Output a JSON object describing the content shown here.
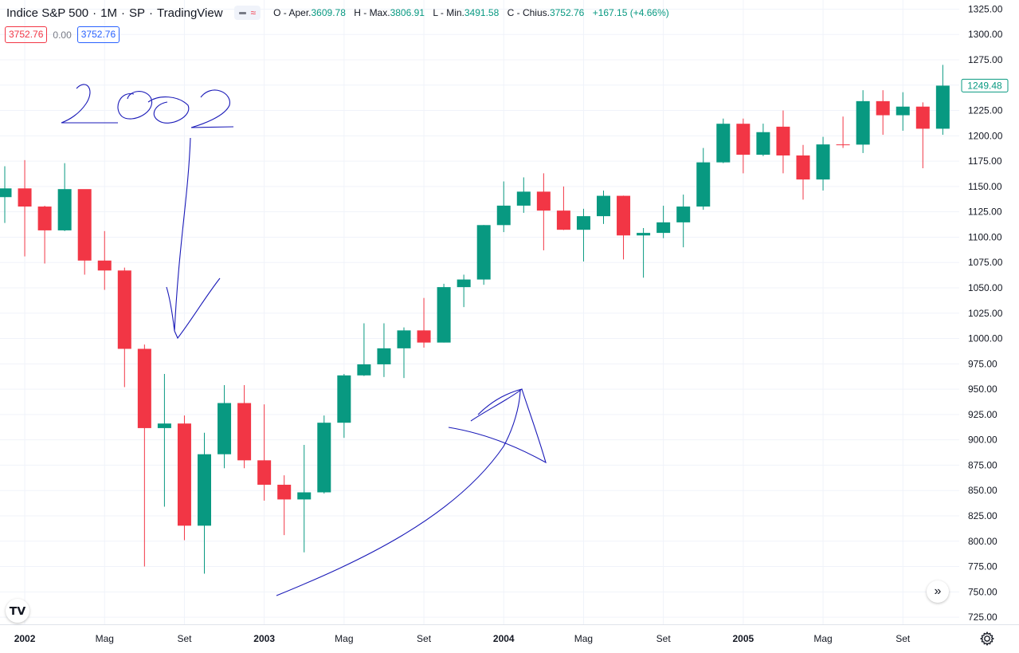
{
  "header": {
    "symbol": "Indice S&P 500",
    "interval": "1M",
    "exchange": "SP",
    "source": "TradingView",
    "separator": "·",
    "ohlc": {
      "open_label": "O - Aper.",
      "open": "3609.78",
      "high_label": "H - Max.",
      "high": "3806.91",
      "low_label": "L - Min.",
      "low": "3491.58",
      "close_label": "C - Chius.",
      "close": "3752.76",
      "change": "+167.15 (+4.66%)"
    }
  },
  "trade": {
    "sell": "3752.76",
    "spread": "0.00",
    "buy": "3752.76"
  },
  "colors": {
    "up": "#089981",
    "down": "#f23645",
    "drawing": "#1a1ab8",
    "grid": "#f0f3fa"
  },
  "icons": {
    "logo": "tradingview-logo-icon",
    "scroll": "double-chevron-right-icon",
    "settings": "gear-icon"
  },
  "logo_text": "𝗧𝗩",
  "scroll_glyph": "»",
  "chart_data": {
    "type": "candlestick",
    "title": "",
    "x_axis": {
      "ticks": [
        "2002",
        "Mag",
        "Set",
        "2003",
        "Mag",
        "Set",
        "2004",
        "Mag",
        "Set",
        "2005",
        "Mag",
        "Set"
      ]
    },
    "y_axis": {
      "range": [
        718,
        1334
      ],
      "ticks": [
        725,
        750,
        775,
        800,
        825,
        850,
        875,
        900,
        925,
        950,
        975,
        1000,
        1025,
        1050,
        1075,
        1100,
        1125,
        1150,
        1175,
        1200,
        1225,
        1250,
        1275,
        1300,
        1325
      ],
      "tick_format": "2dp",
      "position": "right"
    },
    "last_price_label": "1249.48",
    "candles": [
      {
        "date": "2001-12",
        "o": 1139.5,
        "h": 1170,
        "l": 1114,
        "c": 1148.1
      },
      {
        "date": "2002-01",
        "o": 1148.1,
        "h": 1176,
        "l": 1081,
        "c": 1130.2
      },
      {
        "date": "2002-02",
        "o": 1130.2,
        "h": 1131,
        "l": 1074,
        "c": 1106.7
      },
      {
        "date": "2002-03",
        "o": 1106.7,
        "h": 1173,
        "l": 1106,
        "c": 1147.4
      },
      {
        "date": "2002-04",
        "o": 1147.4,
        "h": 1147,
        "l": 1063,
        "c": 1076.9
      },
      {
        "date": "2002-05",
        "o": 1076.9,
        "h": 1106,
        "l": 1048,
        "c": 1067.1
      },
      {
        "date": "2002-06",
        "o": 1067.1,
        "h": 1070,
        "l": 952,
        "c": 989.8
      },
      {
        "date": "2002-07",
        "o": 989.8,
        "h": 994,
        "l": 775,
        "c": 911.6
      },
      {
        "date": "2002-08",
        "o": 911.6,
        "h": 965,
        "l": 834,
        "c": 916.1
      },
      {
        "date": "2002-09",
        "o": 916.1,
        "h": 924,
        "l": 801,
        "c": 815.3
      },
      {
        "date": "2002-10",
        "o": 815.3,
        "h": 907,
        "l": 768,
        "c": 885.8
      },
      {
        "date": "2002-11",
        "o": 885.8,
        "h": 954,
        "l": 872,
        "c": 936.3
      },
      {
        "date": "2002-12",
        "o": 936.3,
        "h": 954,
        "l": 872,
        "c": 879.8
      },
      {
        "date": "2003-01",
        "o": 879.8,
        "h": 935,
        "l": 840,
        "c": 855.7
      },
      {
        "date": "2003-02",
        "o": 855.7,
        "h": 865,
        "l": 806,
        "c": 841.2
      },
      {
        "date": "2003-03",
        "o": 841.2,
        "h": 895,
        "l": 789,
        "c": 848.2
      },
      {
        "date": "2003-04",
        "o": 848.2,
        "h": 924,
        "l": 847,
        "c": 916.9
      },
      {
        "date": "2003-05",
        "o": 916.9,
        "h": 965,
        "l": 902,
        "c": 963.6
      },
      {
        "date": "2003-06",
        "o": 963.6,
        "h": 1015,
        "l": 963,
        "c": 974.5
      },
      {
        "date": "2003-07",
        "o": 974.5,
        "h": 1015,
        "l": 962,
        "c": 990.3
      },
      {
        "date": "2003-08",
        "o": 990.3,
        "h": 1011,
        "l": 961,
        "c": 1008.0
      },
      {
        "date": "2003-09",
        "o": 1008.0,
        "h": 1040,
        "l": 991,
        "c": 996.0
      },
      {
        "date": "2003-10",
        "o": 996.0,
        "h": 1054,
        "l": 996,
        "c": 1050.7
      },
      {
        "date": "2003-11",
        "o": 1050.7,
        "h": 1063,
        "l": 1031,
        "c": 1058.2
      },
      {
        "date": "2003-12",
        "o": 1058.2,
        "h": 1112,
        "l": 1053,
        "c": 1111.9
      },
      {
        "date": "2004-01",
        "o": 1111.9,
        "h": 1155,
        "l": 1105,
        "c": 1131.1
      },
      {
        "date": "2004-02",
        "o": 1131.1,
        "h": 1159,
        "l": 1124,
        "c": 1144.9
      },
      {
        "date": "2004-03",
        "o": 1144.9,
        "h": 1163,
        "l": 1087,
        "c": 1126.2
      },
      {
        "date": "2004-04",
        "o": 1126.2,
        "h": 1150,
        "l": 1107,
        "c": 1107.3
      },
      {
        "date": "2004-05",
        "o": 1107.3,
        "h": 1128,
        "l": 1076,
        "c": 1120.7
      },
      {
        "date": "2004-06",
        "o": 1120.7,
        "h": 1146,
        "l": 1113,
        "c": 1140.8
      },
      {
        "date": "2004-07",
        "o": 1140.8,
        "h": 1141,
        "l": 1078,
        "c": 1101.7
      },
      {
        "date": "2004-08",
        "o": 1101.7,
        "h": 1109,
        "l": 1060,
        "c": 1104.2
      },
      {
        "date": "2004-09",
        "o": 1104.2,
        "h": 1131,
        "l": 1099,
        "c": 1114.6
      },
      {
        "date": "2004-10",
        "o": 1114.6,
        "h": 1142,
        "l": 1090,
        "c": 1130.2
      },
      {
        "date": "2004-11",
        "o": 1130.2,
        "h": 1188,
        "l": 1127,
        "c": 1173.8
      },
      {
        "date": "2004-12",
        "o": 1173.8,
        "h": 1217,
        "l": 1173,
        "c": 1211.9
      },
      {
        "date": "2005-01",
        "o": 1211.9,
        "h": 1217,
        "l": 1163,
        "c": 1181.3
      },
      {
        "date": "2005-02",
        "o": 1181.3,
        "h": 1212,
        "l": 1180,
        "c": 1203.6
      },
      {
        "date": "2005-03",
        "o": 1209.0,
        "h": 1225,
        "l": 1163,
        "c": 1180.6
      },
      {
        "date": "2005-04",
        "o": 1180.6,
        "h": 1191,
        "l": 1137,
        "c": 1156.9
      },
      {
        "date": "2005-05",
        "o": 1156.9,
        "h": 1199,
        "l": 1146,
        "c": 1191.5
      },
      {
        "date": "2005-06",
        "o": 1191.5,
        "h": 1219,
        "l": 1188,
        "c": 1191.3
      },
      {
        "date": "2005-07",
        "o": 1191.3,
        "h": 1245,
        "l": 1183,
        "c": 1234.2
      },
      {
        "date": "2005-08",
        "o": 1234.2,
        "h": 1245,
        "l": 1201,
        "c": 1220.3
      },
      {
        "date": "2005-09",
        "o": 1220.3,
        "h": 1243,
        "l": 1205,
        "c": 1228.8
      },
      {
        "date": "2005-10",
        "o": 1228.8,
        "h": 1233,
        "l": 1168,
        "c": 1207.0
      },
      {
        "date": "2005-11",
        "o": 1207.0,
        "h": 1270,
        "l": 1201,
        "c": 1249.5
      }
    ],
    "annotations": {
      "handwritten_text": "2002"
    }
  }
}
